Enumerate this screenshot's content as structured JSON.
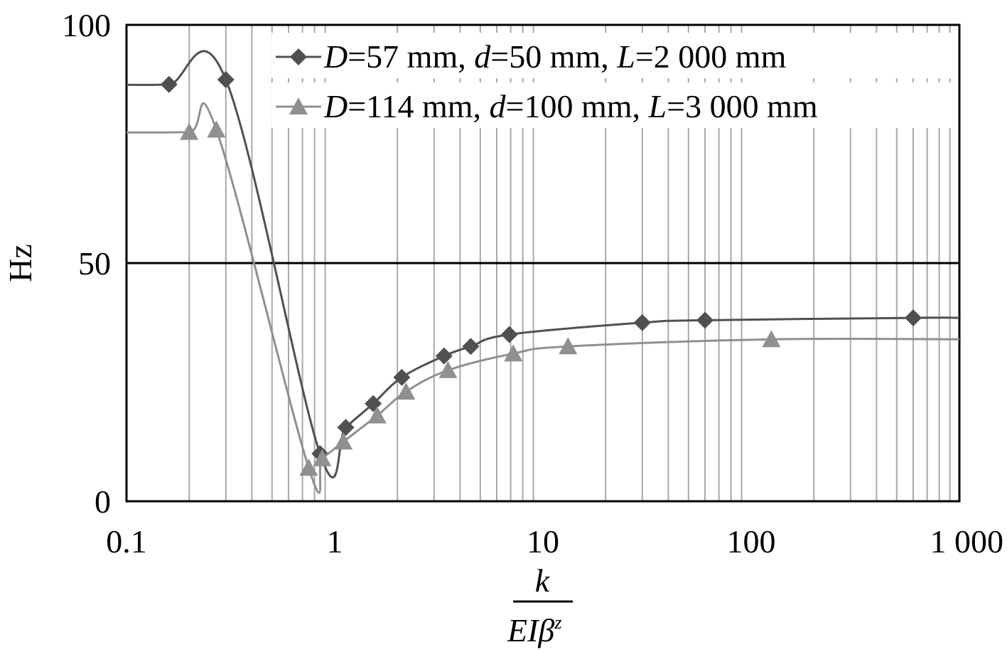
{
  "chart_data": {
    "type": "line",
    "xscale": "log",
    "xlim": [
      0.1,
      1000
    ],
    "ylim": [
      0,
      100
    ],
    "xticks": [
      {
        "value": 0.1,
        "label": "0.1"
      },
      {
        "value": 1,
        "label": "1"
      },
      {
        "value": 10,
        "label": "10"
      },
      {
        "value": 100,
        "label": "100"
      },
      {
        "value": 1000,
        "label": "1 000"
      }
    ],
    "yticks": [
      {
        "value": 0,
        "label": "0"
      },
      {
        "value": 50,
        "label": "50"
      },
      {
        "value": 100,
        "label": "100"
      }
    ],
    "ylabel": "Hz",
    "xlabel": {
      "numerator": "k",
      "denominator": "EIβ",
      "superscript": "z"
    },
    "grid": {
      "x_minor_log": true,
      "y_major_lines": [
        50
      ]
    },
    "legend_position": "top-right",
    "series": [
      {
        "name": "D=57 mm, d=50 mm, L=2 000 mm",
        "name_parts": [
          {
            "text": "D",
            "italic": true
          },
          {
            "text": "=57 mm, ",
            "italic": false
          },
          {
            "text": "d",
            "italic": true
          },
          {
            "text": "=50 mm, ",
            "italic": false
          },
          {
            "text": "L",
            "italic": true
          },
          {
            "text": "=2 000 mm",
            "italic": false
          }
        ],
        "marker": "diamond",
        "color": "#505050",
        "x": [
          0.16,
          0.3,
          0.85,
          1.13,
          1.53,
          2.1,
          3.35,
          4.5,
          6.9,
          30,
          60,
          600
        ],
        "y": [
          87.5,
          88.5,
          10,
          15.5,
          20.5,
          26,
          30.5,
          32.5,
          35,
          37.5,
          38,
          38.5
        ]
      },
      {
        "name": "D=114 mm, d=100 mm, L=3 000 mm",
        "name_parts": [
          {
            "text": "D",
            "italic": true
          },
          {
            "text": "=114 mm, ",
            "italic": false
          },
          {
            "text": "d",
            "italic": true
          },
          {
            "text": "=100 mm, ",
            "italic": false
          },
          {
            "text": "L",
            "italic": true
          },
          {
            "text": "=3 000 mm",
            "italic": false
          }
        ],
        "marker": "triangle",
        "color": "#909090",
        "x": [
          0.2,
          0.27,
          0.75,
          0.87,
          1.1,
          1.6,
          2.2,
          3.5,
          7.2,
          13.2,
          125
        ],
        "y": [
          77.5,
          78,
          7,
          9,
          12.5,
          18,
          23,
          27.5,
          31,
          32.5,
          34
        ]
      }
    ]
  }
}
